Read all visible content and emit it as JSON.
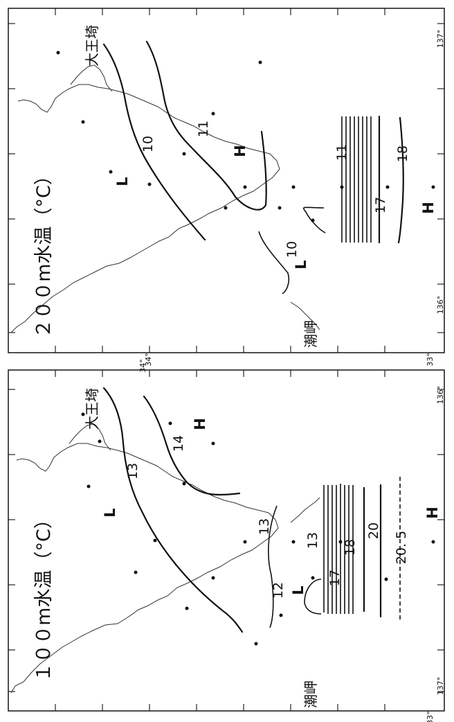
{
  "panels": [
    {
      "id": "100m",
      "title": "１００m水温（°C）",
      "cape_north": "大王埼",
      "cape_south": "潮岬",
      "contours": [
        "13",
        "14",
        "13",
        "12",
        "13",
        "17",
        "18",
        "20",
        "20. 5"
      ],
      "highs": [
        "H",
        "H"
      ],
      "lows": [
        "L",
        "L"
      ],
      "lat_top": "34°",
      "lat_bottom": "33°",
      "lon_left": "136°",
      "lon_right": "137°"
    },
    {
      "id": "200m",
      "title": "２００m水温（°C）",
      "cape_north": "大王埼",
      "cape_south": "潮岬",
      "contours": [
        "10",
        "11",
        "10",
        "11",
        "17",
        "18"
      ],
      "highs": [
        "H",
        "H"
      ],
      "lows": [
        "L",
        "L"
      ],
      "lat_top": "34°",
      "lat_bottom": "33°",
      "lon_left": "136°",
      "lon_right": "137°"
    }
  ]
}
